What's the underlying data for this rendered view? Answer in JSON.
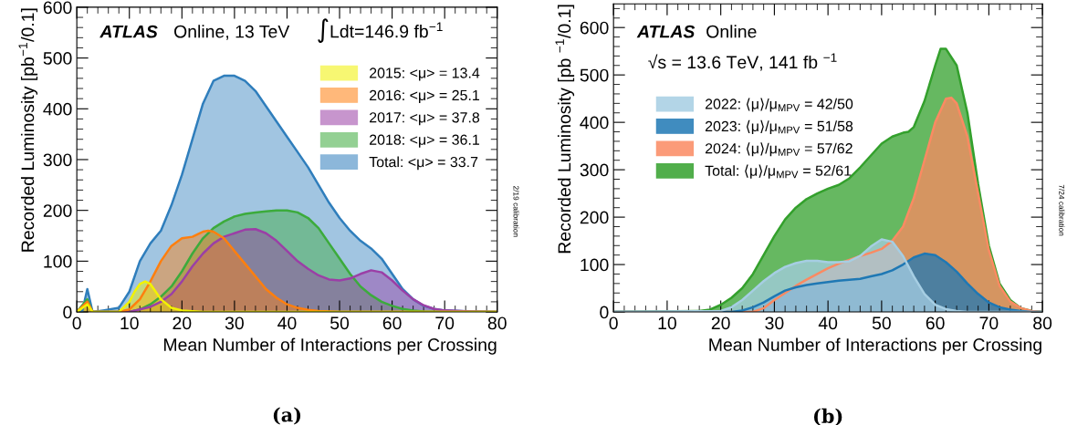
{
  "chart_data": [
    {
      "type": "area",
      "xlabel": "Mean Number of Interactions per Crossing",
      "ylabel": "Recorded Luminosity [pb$^{−1}$/0.1]",
      "xlim": [
        0,
        80
      ],
      "ylim": [
        0,
        600
      ],
      "xticks": [
        0,
        10,
        20,
        30,
        40,
        50,
        60,
        70,
        80
      ],
      "yticks": [
        0,
        100,
        200,
        300,
        400,
        500,
        600
      ],
      "legend": "top right",
      "grid": false,
      "annotations": [
        "ATLAS",
        "Online, 13 TeV",
        "∫Ldt=146.9 fb$^{−1}$",
        "2/19 calibration",
        "(a)"
      ],
      "series": [
        {
          "name": "2015: <μ> = 13.4",
          "color": "#f2f200",
          "x": [
            0,
            2,
            3,
            8,
            10,
            11,
            12,
            13,
            14,
            15,
            16,
            18,
            20,
            24,
            80
          ],
          "values": [
            0,
            15,
            0,
            0,
            20,
            40,
            55,
            60,
            55,
            40,
            25,
            8,
            3,
            0,
            0
          ]
        },
        {
          "name": "2016: <μ> = 25.1",
          "color": "#ff7f0e",
          "x": [
            0,
            2,
            3,
            8,
            10,
            12,
            14,
            16,
            18,
            20,
            22,
            24,
            25,
            26,
            28,
            30,
            32,
            34,
            36,
            38,
            40,
            42,
            44,
            46,
            50,
            80
          ],
          "values": [
            0,
            20,
            0,
            0,
            5,
            25,
            60,
            100,
            130,
            145,
            148,
            158,
            160,
            158,
            145,
            120,
            95,
            70,
            45,
            28,
            15,
            8,
            4,
            2,
            0,
            0
          ]
        },
        {
          "name": "2017: <μ> = 37.8",
          "color": "#9b3fa6",
          "x": [
            0,
            2,
            3,
            10,
            12,
            14,
            16,
            18,
            20,
            22,
            24,
            26,
            28,
            30,
            32,
            34,
            36,
            38,
            40,
            42,
            44,
            46,
            48,
            50,
            52,
            54,
            56,
            58,
            60,
            62,
            64,
            66,
            68,
            70,
            75,
            80
          ],
          "values": [
            0,
            20,
            0,
            0,
            5,
            10,
            20,
            35,
            60,
            90,
            115,
            135,
            148,
            155,
            162,
            163,
            155,
            140,
            120,
            100,
            85,
            72,
            64,
            62,
            66,
            75,
            82,
            78,
            62,
            42,
            25,
            13,
            6,
            3,
            1,
            0
          ]
        },
        {
          "name": "2018: <μ> = 36.1",
          "color": "#3cab3c",
          "x": [
            0,
            2,
            3,
            10,
            12,
            14,
            16,
            18,
            20,
            22,
            24,
            26,
            28,
            30,
            32,
            34,
            36,
            38,
            40,
            42,
            44,
            46,
            48,
            50,
            52,
            54,
            56,
            58,
            60,
            62,
            64,
            66,
            70,
            80
          ],
          "values": [
            0,
            25,
            0,
            0,
            5,
            15,
            30,
            50,
            80,
            115,
            145,
            165,
            178,
            188,
            193,
            196,
            198,
            200,
            200,
            196,
            185,
            165,
            135,
            105,
            75,
            50,
            33,
            20,
            12,
            6,
            3,
            1,
            0,
            0
          ]
        },
        {
          "name": "Total: <μ> = 33.7",
          "color": "#2f7ebc",
          "x": [
            0,
            1,
            2,
            3,
            5,
            8,
            10,
            12,
            14,
            16,
            18,
            20,
            22,
            24,
            26,
            28,
            30,
            32,
            34,
            36,
            38,
            40,
            42,
            44,
            46,
            48,
            50,
            52,
            54,
            56,
            58,
            60,
            62,
            64,
            66,
            68,
            70,
            75,
            80
          ],
          "values": [
            0,
            0,
            45,
            0,
            3,
            8,
            40,
            100,
            135,
            160,
            210,
            270,
            340,
            410,
            455,
            465,
            465,
            455,
            435,
            405,
            375,
            345,
            315,
            285,
            250,
            215,
            185,
            160,
            140,
            125,
            105,
            75,
            45,
            25,
            12,
            6,
            3,
            1,
            0
          ]
        }
      ]
    },
    {
      "type": "area",
      "xlabel": "Mean Number of Interactions per Crossing",
      "ylabel": "Recorded Luminosity [pb $^{−1}$/0.1]",
      "xlim": [
        0,
        80
      ],
      "ylim": [
        0,
        650
      ],
      "xticks": [
        0,
        10,
        20,
        30,
        40,
        50,
        60,
        70,
        80
      ],
      "yticks": [
        0,
        100,
        200,
        300,
        400,
        500,
        600
      ],
      "legend": "top left",
      "grid": false,
      "annotations": [
        "ATLAS",
        "Online",
        "√s = 13.6 TeV, 141 fb $^{−1}$",
        "7/24 calibration",
        "(b)"
      ],
      "series": [
        {
          "name": "2022: ⟨μ⟩/μ$_{MPV}$ = 42/50",
          "color": "#a6cee3",
          "x": [
            0,
            20,
            22,
            24,
            26,
            28,
            30,
            32,
            34,
            36,
            38,
            40,
            42,
            44,
            46,
            48,
            50,
            52,
            54,
            56,
            58,
            60,
            62,
            64,
            66,
            80
          ],
          "values": [
            0,
            2,
            10,
            25,
            45,
            65,
            82,
            95,
            103,
            108,
            108,
            105,
            105,
            107,
            118,
            138,
            153,
            148,
            118,
            75,
            38,
            15,
            6,
            2,
            0,
            0
          ]
        },
        {
          "name": "2023: ⟨μ⟩/μ$_{MPV}$ = 51/58",
          "color": "#1f78b4",
          "x": [
            0,
            22,
            24,
            26,
            28,
            30,
            32,
            34,
            36,
            38,
            40,
            42,
            44,
            46,
            48,
            50,
            52,
            54,
            56,
            58,
            60,
            62,
            64,
            66,
            68,
            70,
            72,
            74,
            76,
            78,
            80
          ],
          "values": [
            0,
            0,
            3,
            10,
            20,
            33,
            45,
            52,
            57,
            60,
            63,
            66,
            68,
            70,
            75,
            80,
            88,
            100,
            115,
            123,
            120,
            105,
            85,
            60,
            38,
            20,
            10,
            5,
            2,
            0,
            0
          ]
        },
        {
          "name": "2024: ⟨μ⟩/μ$_{MPV}$ = 57/62",
          "color": "#fb8a62",
          "x": [
            0,
            26,
            28,
            30,
            32,
            34,
            36,
            38,
            40,
            42,
            44,
            46,
            48,
            50,
            52,
            54,
            56,
            58,
            60,
            62,
            63,
            64,
            66,
            68,
            70,
            72,
            74,
            76,
            78,
            80
          ],
          "values": [
            0,
            0,
            8,
            25,
            40,
            55,
            68,
            80,
            92,
            102,
            110,
            118,
            125,
            133,
            150,
            180,
            240,
            320,
            400,
            450,
            452,
            440,
            370,
            250,
            130,
            55,
            22,
            8,
            2,
            0
          ]
        },
        {
          "name": "Total: ⟨μ⟩/μ$_{MPV}$ = 52/61",
          "color": "#33a02c",
          "x": [
            0,
            16,
            18,
            20,
            22,
            24,
            26,
            28,
            30,
            32,
            34,
            36,
            38,
            40,
            42,
            44,
            46,
            48,
            50,
            52,
            54,
            55,
            56,
            58,
            60,
            61,
            62,
            64,
            66,
            68,
            70,
            72,
            74,
            76,
            78,
            80
          ],
          "values": [
            0,
            2,
            5,
            15,
            30,
            50,
            80,
            120,
            160,
            195,
            220,
            238,
            250,
            260,
            268,
            282,
            305,
            330,
            355,
            370,
            378,
            380,
            390,
            445,
            520,
            555,
            555,
            520,
            420,
            270,
            140,
            60,
            25,
            8,
            2,
            0
          ]
        }
      ]
    }
  ]
}
